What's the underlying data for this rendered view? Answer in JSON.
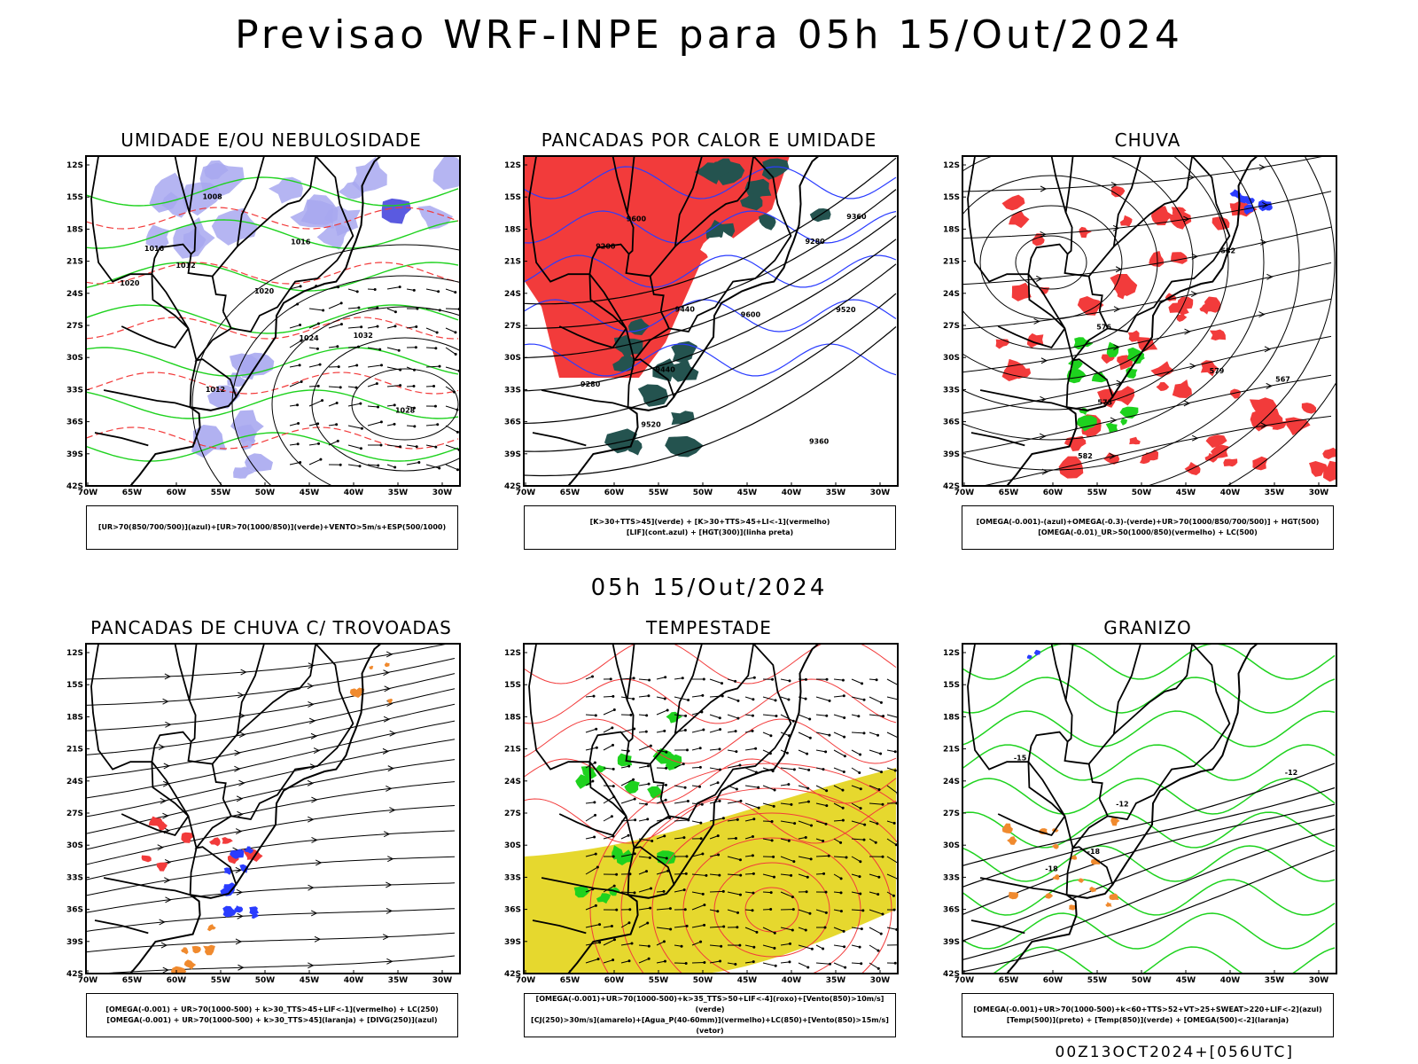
{
  "main_title": "Previsao WRF-INPE  para 05h 15/Out/2024",
  "sub_title": "05h 15/Out/2024",
  "footer": "00Z13OCT2024+[056UTC]",
  "axes": {
    "lat_labels": [
      "12S",
      "15S",
      "18S",
      "21S",
      "24S",
      "27S",
      "30S",
      "33S",
      "36S",
      "39S",
      "42S"
    ],
    "lon_labels": [
      "70W",
      "65W",
      "60W",
      "55W",
      "50W",
      "45W",
      "40W",
      "35W",
      "30W"
    ]
  },
  "colors": {
    "red": "#f23b3b",
    "green": "#1ed21e",
    "blue": "#2a3cff",
    "lightblue": "#a8a8f0",
    "darkgreen": "#24534f",
    "yellow": "#e6d82e",
    "orange": "#f08a2e",
    "black": "#000000"
  },
  "panels": [
    {
      "title": "UMIDADE E/OU NEBULOSIDADE",
      "legend": [
        "[UR>70(850/700/500)](azul)+[UR>70(1000/850)](verde)+VENTO>5m/s+ESP(500/1000)"
      ],
      "contour_labels": [
        "1012",
        "1016",
        "1020",
        "1008",
        "1012",
        "1016",
        "1020",
        "1024",
        "1028",
        "1032"
      ]
    },
    {
      "title": "PANCADAS POR CALOR E UMIDADE",
      "legend": [
        "[K>30+TTS>45](verde) + [K>30+TTS>45+LI<-1](vermelho)",
        "[LIF](cont.azul) + [HGT(300)](linha preta)"
      ],
      "contour_labels": [
        "9600",
        "9520",
        "9440",
        "9360",
        "9280",
        "9200",
        "9600",
        "9520",
        "9440",
        "9360",
        "9280"
      ]
    },
    {
      "title": "CHUVA",
      "legend": [
        "[OMEGA(-0.001)-(azul)+OMEGA(-0.3)-(verde)+UR>70(1000/850/700/500)] + HGT(500)",
        "[OMEGA(-0.01)_UR>50(1000/850)(vermelho) + LC(500)"
      ],
      "contour_labels": [
        "582",
        "579",
        "576",
        "573",
        "567",
        "582"
      ]
    },
    {
      "title": "PANCADAS DE CHUVA C/ TROVOADAS",
      "legend": [
        "[OMEGA(-0.001) + UR>70(1000-500) + k>30_TTS>45+LIF<-1](vermelho) + LC(250)",
        "[OMEGA(-0.001) + UR>70(1000-500) + k>30_TTS>45](laranja) + [DIVG(250)](azul)"
      ],
      "contour_labels": []
    },
    {
      "title": "TEMPESTADE",
      "legend": [
        "[OMEGA(-0.001)+UR>70(1000-500)+k>35_TTS>50+LIF<-4](roxo)+[Vento(850)>10m/s](verde)",
        "[CJ(250)>30m/s](amarelo)+[Agua_P(40-60mm)](vermelho)+LC(850)+[Vento(850)>15m/s](vetor)"
      ],
      "contour_labels": []
    },
    {
      "title": "GRANIZO",
      "legend": [
        "[OMEGA(-0.001)+UR>70(1000-500)+k<60+TTS>52+VT>25+SWEAT>220+LIF<-2](azul)",
        "[Temp(500)](preto) + [Temp(850)](verde) + [OMEGA(500)<-2](laranja)"
      ],
      "contour_labels": [
        "-12",
        "-15",
        "-18",
        "-12",
        "-18"
      ]
    }
  ]
}
